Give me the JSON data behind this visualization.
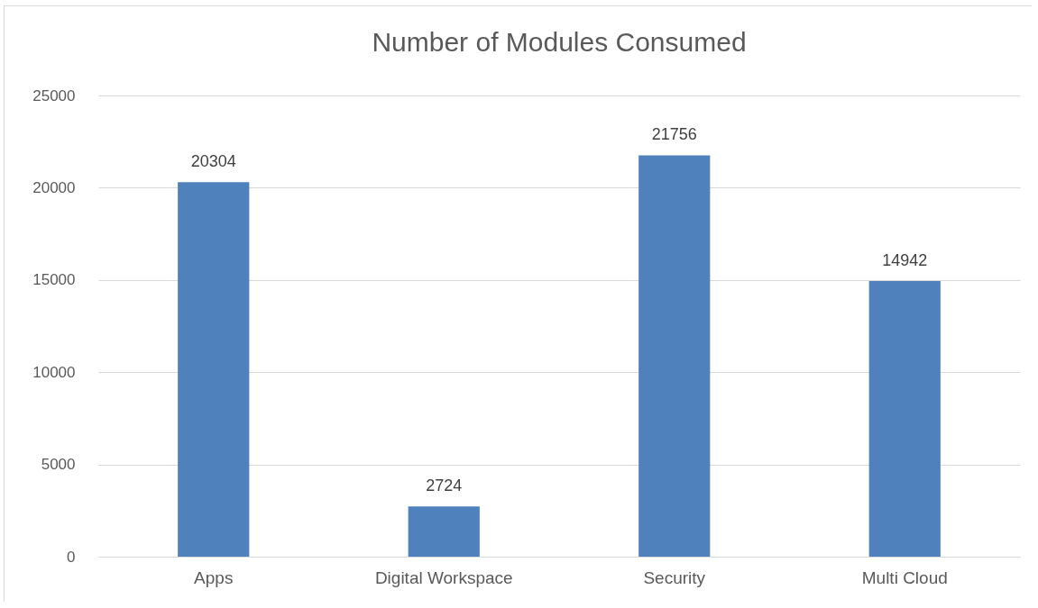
{
  "chart_data": {
    "type": "bar",
    "title": "Number of Modules Consumed",
    "categories": [
      "Apps",
      "Digital Workspace",
      "Security",
      "Multi Cloud"
    ],
    "values": [
      20304,
      2724,
      21756,
      14942
    ],
    "color": "#4f81bd",
    "ylim": [
      0,
      25000
    ],
    "yticks": [
      0,
      5000,
      10000,
      15000,
      20000,
      25000
    ],
    "grid": "y",
    "data_labels": true
  }
}
